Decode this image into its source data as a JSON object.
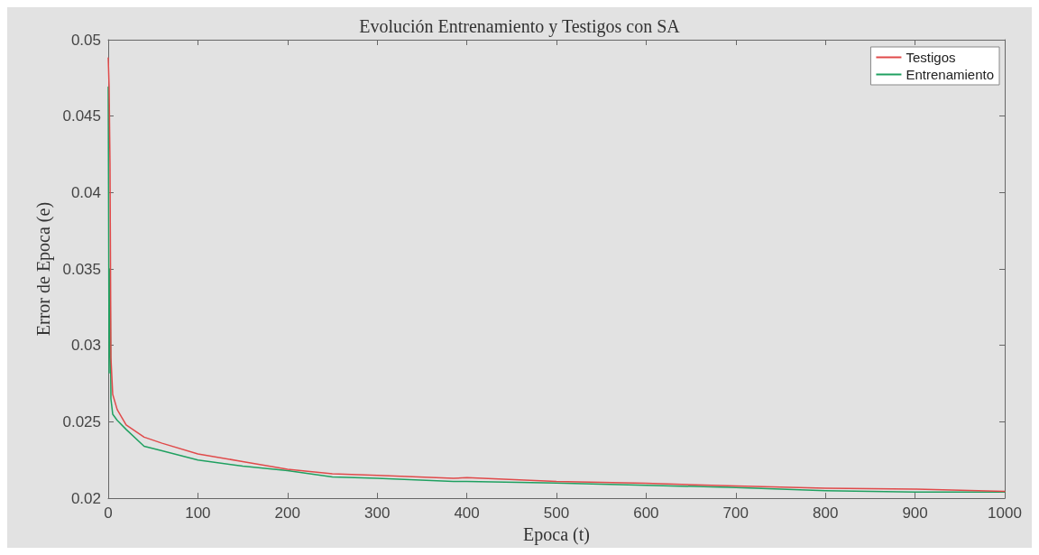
{
  "chart_data": {
    "type": "line",
    "title": "Evolución Entrenamiento y Testigos con SA",
    "xlabel": "Epoca (t)",
    "ylabel": "Error de Epoca (e)",
    "xlim": [
      0,
      1000
    ],
    "xticks": [
      0,
      100,
      200,
      300,
      400,
      500,
      600,
      700,
      800,
      900,
      1000
    ],
    "ylim": [
      0.02,
      0.05
    ],
    "yticks": [
      0.02,
      0.025,
      0.03,
      0.035,
      0.04,
      0.045,
      0.05
    ],
    "grid": false,
    "legend": "top right",
    "marker": "none",
    "line_style": "solid",
    "series": [
      {
        "name": "Testigos",
        "color": "#e04a4a",
        "x": [
          0,
          1,
          2,
          3,
          5,
          10,
          20,
          40,
          60,
          100,
          150,
          200,
          250,
          300,
          385,
          400,
          500,
          600,
          700,
          800,
          900,
          1000
        ],
        "values": [
          0.0488,
          0.0469,
          0.0419,
          0.0292,
          0.0268,
          0.0258,
          0.0248,
          0.024,
          0.0236,
          0.0229,
          0.0224,
          0.0219,
          0.0216,
          0.0215,
          0.0213,
          0.02135,
          0.0211,
          0.02098,
          0.0208,
          0.02065,
          0.0206,
          0.02045
        ]
      },
      {
        "name": "Entrenamiento",
        "color": "#1fa060",
        "x": [
          0,
          1,
          2,
          3,
          5,
          10,
          20,
          40,
          60,
          100,
          150,
          200,
          250,
          300,
          385,
          400,
          500,
          600,
          700,
          800,
          900,
          1000
        ],
        "values": [
          0.0469,
          0.0282,
          0.035,
          0.0265,
          0.0255,
          0.0251,
          0.0245,
          0.0234,
          0.0231,
          0.0225,
          0.0221,
          0.0218,
          0.0214,
          0.0213,
          0.0211,
          0.0211,
          0.021,
          0.02085,
          0.0207,
          0.0205,
          0.0204,
          0.0204
        ]
      }
    ]
  }
}
